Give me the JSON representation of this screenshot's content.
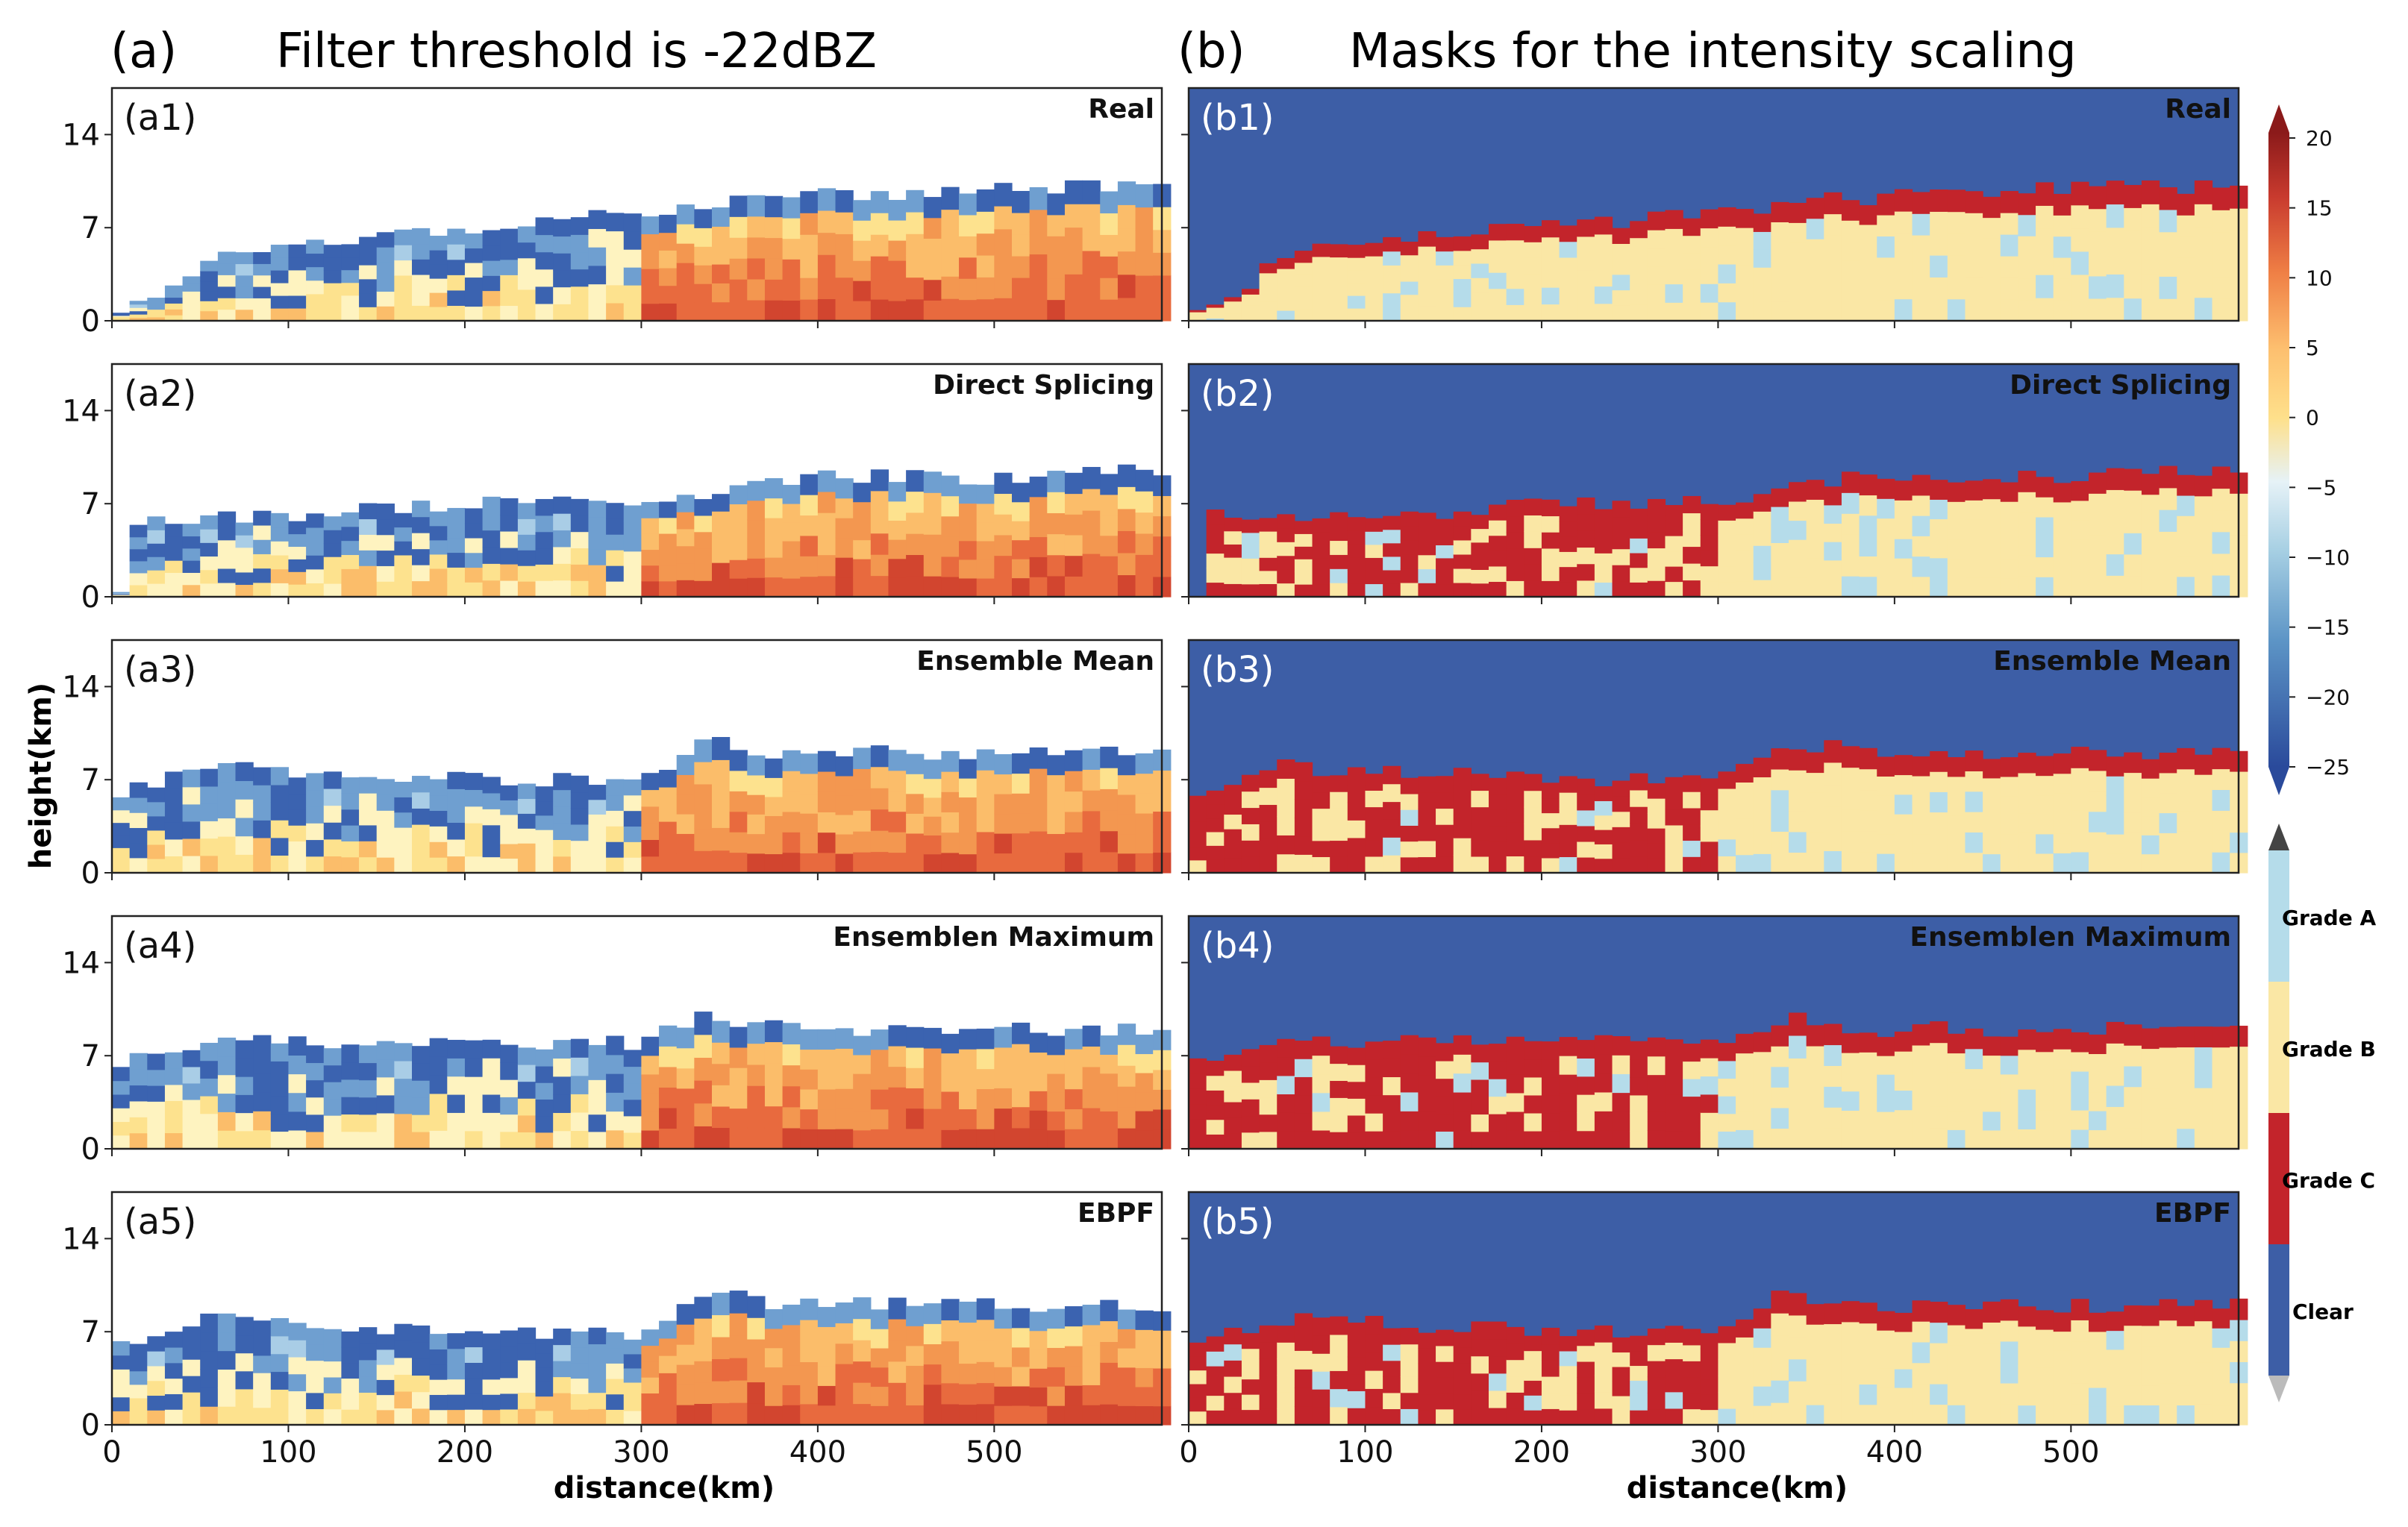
{
  "figure": {
    "col_a_letter": "(a)",
    "col_a_title": "Filter threshold is -22dBZ",
    "col_b_letter": "(b)",
    "col_b_title": "Masks for the intensity scaling",
    "ylabel": "height(km)",
    "xlabel": "distance(km)"
  },
  "panels_a": [
    {
      "tag": "(a1)",
      "name": "Real"
    },
    {
      "tag": "(a2)",
      "name": "Direct Splicing"
    },
    {
      "tag": "(a3)",
      "name": "Ensemble Mean"
    },
    {
      "tag": "(a4)",
      "name": "Ensemblen Maximum"
    },
    {
      "tag": "(a5)",
      "name": "EBPF"
    }
  ],
  "panels_b": [
    {
      "tag": "(b1)",
      "name": "Real"
    },
    {
      "tag": "(b2)",
      "name": "Direct Splicing"
    },
    {
      "tag": "(b3)",
      "name": "Ensemble Mean"
    },
    {
      "tag": "(b4)",
      "name": "Ensemblen Maximum"
    },
    {
      "tag": "(b5)",
      "name": "EBPF"
    }
  ],
  "colorbar_top": {
    "ticks": [
      "20",
      "15",
      "10",
      "5",
      "0",
      "−5",
      "−10",
      "−15",
      "−20",
      "−25"
    ],
    "colors": [
      "#f7f7fb",
      "#e6f2f7",
      "#c7e3ef",
      "#a6cfe3",
      "#7fb3d5",
      "#5d95c6",
      "#3d70b3",
      "#2a4a9b",
      "#fdf2b4",
      "#fee08b",
      "#fdbf6f",
      "#f7a25b",
      "#ef7f45",
      "#e45a36",
      "#c83a2e",
      "#b22222",
      "#8b1a1a"
    ]
  },
  "colorbar_bottom": {
    "labels": [
      "Grade A",
      "Grade B",
      "Grade C",
      "Clear"
    ],
    "colors": {
      "grade_a": "#b5dcea",
      "grade_b": "#fae7a5",
      "grade_c": "#c3242b",
      "clear": "#3d5ea6",
      "over": "#444444",
      "under": "#bbbbbb"
    }
  },
  "chart_data": [
    {
      "type": "heatmap",
      "title": "Filter threshold is -22dBZ",
      "xlabel": "distance(km)",
      "ylabel": "height(km)",
      "xlim": [
        0,
        595
      ],
      "ylim": [
        0,
        17.5
      ],
      "xticks": [
        0,
        100,
        200,
        300,
        400,
        500
      ],
      "yticks": [
        0,
        7,
        14
      ],
      "panels": [
        "Real",
        "Direct Splicing",
        "Ensemble Mean",
        "Ensemblen Maximum",
        "EBPF"
      ],
      "colorbar": {
        "min": -25,
        "max": 20,
        "ticks": [
          20,
          15,
          10,
          5,
          0,
          -5,
          -10,
          -15,
          -20,
          -25
        ]
      },
      "echo_top_km_by_panel": {
        "Real": {
          "x": [
            0,
            60,
            150,
            300,
            350,
            420,
            500,
            595
          ],
          "top": [
            0,
            5,
            6.5,
            8,
            9,
            9.5,
            10,
            10
          ]
        },
        "Direct Splicing": {
          "x": [
            10,
            100,
            200,
            300,
            380,
            500,
            595
          ],
          "top": [
            6,
            6,
            7,
            7,
            9,
            9,
            9.5
          ]
        },
        "Ensemble Mean": {
          "x": [
            0,
            50,
            200,
            300,
            340,
            380,
            500,
            595
          ],
          "top": [
            6,
            8,
            7,
            7,
            10,
            9,
            9,
            9
          ]
        },
        "Ensemblen Maximum": {
          "x": [
            0,
            50,
            200,
            300,
            340,
            380,
            500,
            595
          ],
          "top": [
            6,
            8,
            8,
            8,
            10,
            9,
            9,
            9
          ]
        },
        "EBPF": {
          "x": [
            0,
            50,
            200,
            300,
            340,
            380,
            500,
            595
          ],
          "top": [
            6,
            8,
            7,
            7,
            10,
            9,
            9,
            9
          ]
        }
      }
    },
    {
      "type": "heatmap",
      "title": "Masks for the intensity scaling",
      "xlabel": "distance(km)",
      "xlim": [
        0,
        595
      ],
      "ylim": [
        0,
        17.5
      ],
      "xticks": [
        0,
        100,
        200,
        300,
        400,
        500
      ],
      "panels": [
        "Real",
        "Direct Splicing",
        "Ensemble Mean",
        "Ensemblen Maximum",
        "EBPF"
      ],
      "categories": [
        "Grade A",
        "Grade B",
        "Grade C",
        "Clear"
      ]
    }
  ]
}
